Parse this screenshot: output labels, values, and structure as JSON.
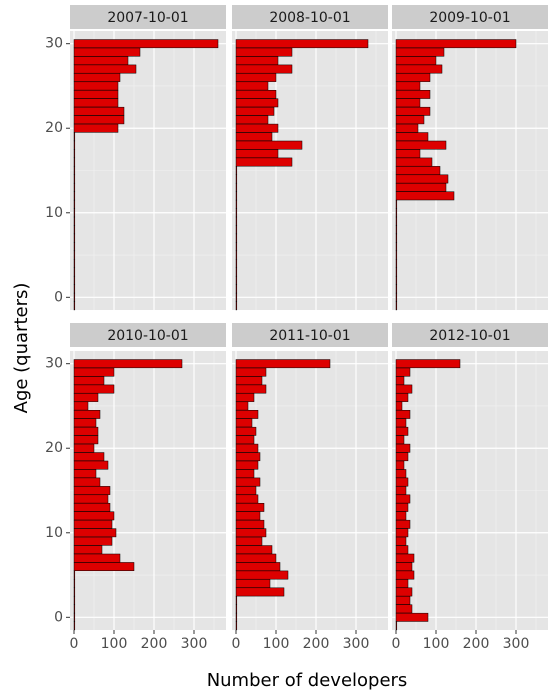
{
  "chart_data": {
    "type": "bar",
    "orientation": "horizontal",
    "xlabel": "Number of developers",
    "ylabel": "Age (quarters)",
    "xlim": [
      -10,
      380
    ],
    "ylim": [
      -1.5,
      31.5
    ],
    "x_ticks": [
      0,
      100,
      200,
      300
    ],
    "y_ticks": [
      0,
      10,
      20,
      30
    ],
    "grid": true,
    "colors": {
      "bar_fill": "#dd0000",
      "bar_stroke": "#000000",
      "panel_bg": "#e5e5e5",
      "grid": "#ffffff",
      "strip_bg": "#cccccc"
    },
    "ages": [
      30,
      29,
      28,
      27,
      26,
      25,
      24,
      23,
      22,
      21,
      20,
      19,
      18,
      17,
      16,
      15,
      14,
      13,
      12,
      11,
      10,
      9,
      8,
      7,
      6,
      5,
      4,
      3,
      2,
      1,
      0,
      -1
    ],
    "facets": [
      {
        "name": "2007-10-01",
        "values": [
          360,
          165,
          135,
          155,
          115,
          110,
          110,
          110,
          125,
          125,
          110,
          2,
          2,
          2,
          2,
          2,
          2,
          2,
          2,
          2,
          2,
          2,
          2,
          2,
          2,
          2,
          2,
          2,
          2,
          2,
          2,
          2
        ]
      },
      {
        "name": "2008-10-01",
        "values": [
          330,
          140,
          105,
          140,
          100,
          80,
          100,
          105,
          95,
          80,
          105,
          90,
          165,
          105,
          140,
          2,
          2,
          2,
          2,
          2,
          2,
          2,
          2,
          2,
          2,
          2,
          2,
          2,
          2,
          2,
          2,
          2
        ]
      },
      {
        "name": "2009-10-01",
        "values": [
          300,
          120,
          100,
          115,
          85,
          60,
          85,
          60,
          85,
          70,
          55,
          80,
          125,
          60,
          90,
          110,
          130,
          125,
          145,
          2,
          2,
          2,
          2,
          2,
          2,
          2,
          2,
          2,
          2,
          2,
          2,
          2
        ]
      },
      {
        "name": "2010-10-01",
        "values": [
          270,
          100,
          75,
          100,
          60,
          35,
          65,
          55,
          60,
          60,
          50,
          75,
          85,
          55,
          65,
          90,
          85,
          90,
          100,
          95,
          105,
          95,
          70,
          115,
          150,
          2,
          2,
          2,
          2,
          2,
          2,
          2
        ]
      },
      {
        "name": "2011-10-01",
        "values": [
          235,
          75,
          65,
          75,
          45,
          30,
          55,
          40,
          50,
          45,
          55,
          60,
          55,
          45,
          60,
          50,
          55,
          70,
          60,
          70,
          75,
          65,
          90,
          100,
          110,
          130,
          85,
          120,
          2,
          2,
          2,
          2
        ]
      },
      {
        "name": "2012-10-01",
        "values": [
          160,
          35,
          20,
          40,
          30,
          15,
          35,
          25,
          30,
          20,
          35,
          30,
          20,
          25,
          30,
          25,
          35,
          30,
          25,
          35,
          30,
          25,
          30,
          45,
          40,
          45,
          30,
          40,
          35,
          40,
          80,
          2
        ]
      }
    ]
  }
}
